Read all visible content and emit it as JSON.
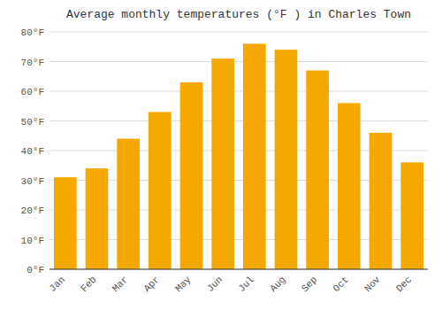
{
  "chart_data": {
    "type": "bar",
    "title": "Average monthly temperatures (°F ) in Charles Town",
    "categories": [
      "Jan",
      "Feb",
      "Mar",
      "Apr",
      "May",
      "Jun",
      "Jul",
      "Aug",
      "Sep",
      "Oct",
      "Nov",
      "Dec"
    ],
    "values": [
      31,
      34,
      44,
      53,
      63,
      71,
      76,
      74,
      67,
      56,
      46,
      36
    ],
    "color": "#F5A800",
    "ylim": [
      0,
      80
    ],
    "yticks": [
      {
        "value": 0,
        "label": "0°F"
      },
      {
        "value": 10,
        "label": "10°F"
      },
      {
        "value": 20,
        "label": "20°F"
      },
      {
        "value": 30,
        "label": "30°F"
      },
      {
        "value": 40,
        "label": "40°F"
      },
      {
        "value": 50,
        "label": "50°F"
      },
      {
        "value": 60,
        "label": "60°F"
      },
      {
        "value": 70,
        "label": "70°F"
      },
      {
        "value": 80,
        "label": "80°F"
      }
    ],
    "grid": true
  }
}
